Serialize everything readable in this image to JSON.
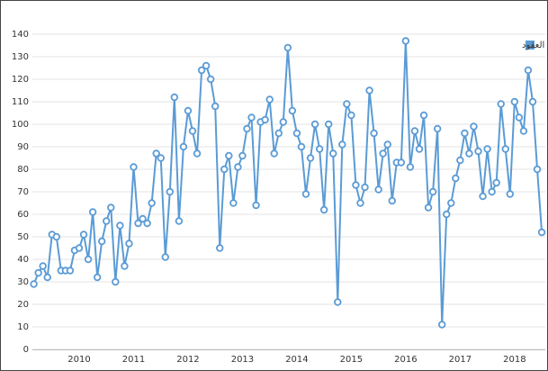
{
  "chart_data": {
    "type": "line",
    "categories": [
      null,
      null,
      null,
      null,
      null,
      null,
      null,
      null,
      null,
      null,
      "2010",
      null,
      null,
      null,
      null,
      null,
      null,
      null,
      null,
      null,
      null,
      null,
      "2011",
      null,
      null,
      null,
      null,
      null,
      null,
      null,
      null,
      null,
      null,
      null,
      "2012",
      null,
      null,
      null,
      null,
      null,
      null,
      null,
      null,
      null,
      null,
      null,
      "2013",
      null,
      null,
      null,
      null,
      null,
      null,
      null,
      null,
      null,
      null,
      null,
      "2014",
      null,
      null,
      null,
      null,
      null,
      null,
      null,
      null,
      null,
      null,
      null,
      "2015",
      null,
      null,
      null,
      null,
      null,
      null,
      null,
      null,
      null,
      null,
      null,
      "2016",
      null,
      null,
      null,
      null,
      null,
      null,
      null,
      null,
      null,
      null,
      null,
      "2017",
      null,
      null,
      null,
      null,
      null,
      null,
      null,
      null,
      null,
      null,
      null,
      "2018",
      null,
      null,
      null,
      null,
      null,
      null
    ],
    "series": [
      {
        "name": "عدد العقود",
        "color": "#5b9bd5",
        "values": [
          29,
          34,
          37,
          32,
          51,
          50,
          35,
          35,
          35,
          44,
          45,
          51,
          40,
          61,
          32,
          48,
          57,
          63,
          30,
          55,
          37,
          47,
          81,
          56,
          58,
          56,
          65,
          87,
          85,
          41,
          70,
          112,
          57,
          90,
          106,
          97,
          87,
          124,
          126,
          120,
          108,
          45,
          80,
          86,
          65,
          81,
          86,
          98,
          103,
          64,
          101,
          102,
          111,
          87,
          96,
          101,
          134,
          106,
          96,
          90,
          69,
          85,
          100,
          89,
          62,
          100,
          87,
          21,
          91,
          109,
          104,
          73,
          65,
          72,
          115,
          96,
          71,
          87,
          91,
          66,
          83,
          83,
          137,
          81,
          97,
          89,
          104,
          63,
          70,
          98,
          11,
          60,
          65,
          76,
          84,
          96,
          87,
          99,
          88,
          68,
          89,
          70,
          74,
          109,
          89,
          69,
          110,
          103,
          97,
          124,
          110,
          80,
          52
        ]
      }
    ],
    "ylim": [
      0,
      140
    ],
    "yticks": [
      0,
      10,
      20,
      30,
      40,
      50,
      60,
      70,
      80,
      90,
      100,
      110,
      120,
      130,
      140
    ],
    "grid": true,
    "legend": "top-right"
  }
}
